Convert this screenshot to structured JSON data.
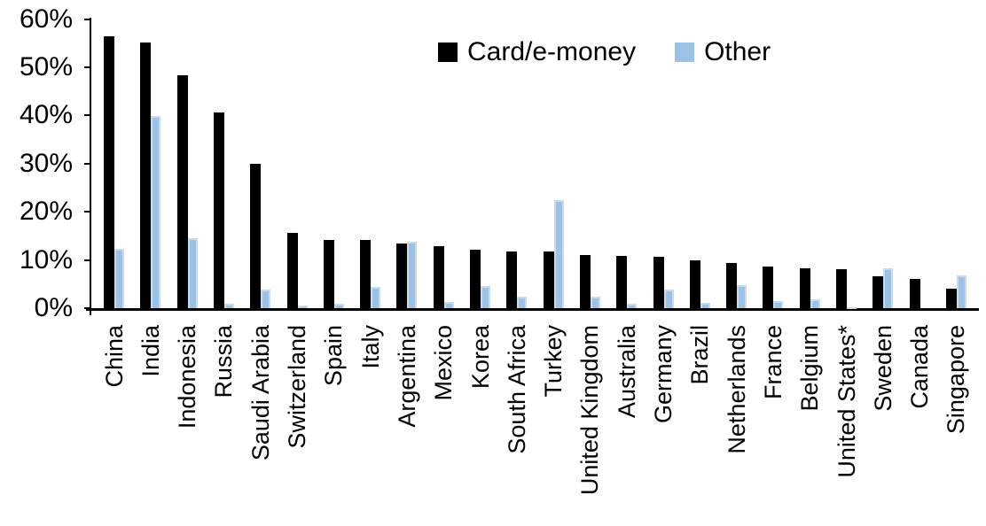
{
  "chart_data": {
    "type": "bar",
    "title": "",
    "xlabel": "",
    "ylabel": "",
    "ylim": [
      0,
      60
    ],
    "grid": false,
    "legend_position": "top-center",
    "background_color": "#FFFFFF",
    "axis_color": "#000000",
    "yticks": [
      {
        "value": 0,
        "label": "0%"
      },
      {
        "value": 10,
        "label": "10%"
      },
      {
        "value": 20,
        "label": "20%"
      },
      {
        "value": 30,
        "label": "30%"
      },
      {
        "value": 40,
        "label": "40%"
      },
      {
        "value": 50,
        "label": "50%"
      },
      {
        "value": 60,
        "label": "60%"
      }
    ],
    "categories": [
      "China",
      "India",
      "Indonesia",
      "Russia",
      "Saudi Arabia",
      "Switzerland",
      "Spain",
      "Italy",
      "Argentina",
      "Mexico",
      "Korea",
      "South Africa",
      "Turkey",
      "United Kingdom",
      "Australia",
      "Germany",
      "Brazil",
      "Netherlands",
      "France",
      "Belgium",
      "United States*",
      "Sweden",
      "Canada",
      "Singapore"
    ],
    "series": [
      {
        "name": "Card/e-money",
        "color": "#000000",
        "values": [
          56.4,
          55.1,
          48.4,
          40.6,
          29.9,
          15.6,
          14.2,
          14.1,
          13.4,
          12.9,
          12.2,
          11.8,
          11.7,
          11.1,
          10.8,
          10.6,
          10.0,
          9.3,
          8.7,
          8.3,
          8.0,
          6.7,
          6.0,
          4.0
        ]
      },
      {
        "name": "Other",
        "color": "#9CC3E6",
        "values": [
          12.3,
          39.8,
          14.5,
          0.9,
          3.8,
          0.6,
          0.9,
          4.5,
          13.8,
          1.2,
          4.6,
          2.3,
          22.5,
          2.3,
          1.0,
          3.9,
          1.1,
          4.8,
          1.5,
          1.9,
          0.2,
          8.2,
          0.0,
          6.8
        ]
      }
    ]
  }
}
